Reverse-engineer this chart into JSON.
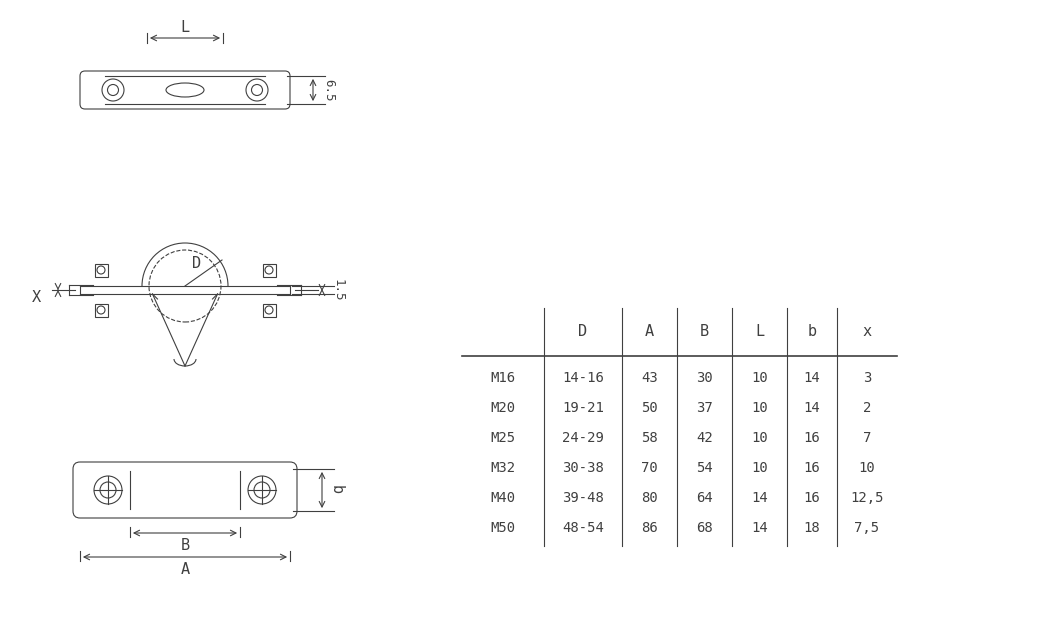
{
  "table_headers": [
    "",
    "D",
    "A",
    "B",
    "L",
    "b",
    "x"
  ],
  "table_rows": [
    [
      "M16",
      "14-16",
      "43",
      "30",
      "10",
      "14",
      "3"
    ],
    [
      "M20",
      "19-21",
      "50",
      "37",
      "10",
      "14",
      "2"
    ],
    [
      "M25",
      "24-29",
      "58",
      "42",
      "10",
      "16",
      "7"
    ],
    [
      "M32",
      "30-38",
      "70",
      "54",
      "10",
      "16",
      "10"
    ],
    [
      "M40",
      "39-48",
      "80",
      "64",
      "14",
      "16",
      "12,5"
    ],
    [
      "M50",
      "48-54",
      "86",
      "68",
      "14",
      "18",
      "7,5"
    ]
  ],
  "line_color": "#404040",
  "text_color": "#404040",
  "bg_color": "#ffffff",
  "dim_65": "6.5",
  "dim_15": "1.5",
  "label_L": "L",
  "label_X": "X",
  "label_D": "D",
  "label_B": "B",
  "label_A": "A",
  "label_b": "b"
}
